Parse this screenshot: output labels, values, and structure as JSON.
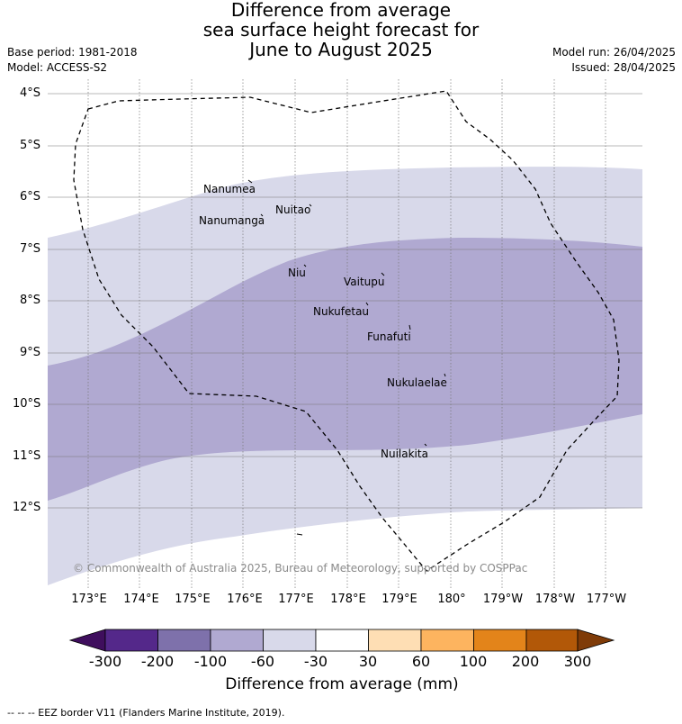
{
  "title": {
    "line1": "Difference from average",
    "line2": "sea surface height forecast for",
    "line3": "June to August 2025"
  },
  "meta": {
    "base_period": "Base period: 1981-2018",
    "model": "Model: ACCESS-S2",
    "model_run": "Model run: 26/04/2025",
    "issued": "Issued: 28/04/2025"
  },
  "map": {
    "lat_labels": [
      "4°S",
      "5°S",
      "6°S",
      "7°S",
      "8°S",
      "9°S",
      "10°S",
      "11°S",
      "12°S"
    ],
    "lon_labels": [
      "173°E",
      "174°E",
      "175°E",
      "176°E",
      "177°E",
      "178°E",
      "179°E",
      "180°",
      "179°W",
      "178°W",
      "177°W"
    ],
    "places": [
      {
        "name": "Nanumea"
      },
      {
        "name": "Nuitao"
      },
      {
        "name": "Nanumanga"
      },
      {
        "name": "Niu"
      },
      {
        "name": "Vaitupu"
      },
      {
        "name": "Nukufetau"
      },
      {
        "name": "Funafuti"
      },
      {
        "name": "Nukulaelae"
      },
      {
        "name": "Nuilakita"
      }
    ],
    "anomaly_classes_shown": [
      "-100 to -60",
      "-60 to -30"
    ],
    "colors": {
      "light_lavender": "#d8d9ea",
      "medium_lavender": "#b0a9d1"
    },
    "copyright": "© Commonwealth of Australia 2025, Bureau of Meteorology, supported by COSPPac"
  },
  "colorbar": {
    "ticks": [
      "-300",
      "-200",
      "-100",
      "-60",
      "-30",
      "30",
      "60",
      "100",
      "200",
      "300"
    ],
    "colors": [
      "#3f0e5d",
      "#54288a",
      "#7e71ab",
      "#b0a9d1",
      "#d8d9ea",
      "#ffffff",
      "#fedeb4",
      "#fdb45f",
      "#e3841a",
      "#b25808",
      "#7f3b08"
    ],
    "label": "Difference from average (mm)"
  },
  "eez_note": "--  --  -- EEZ border V11 (Flanders Marine Institute, 2019)."
}
